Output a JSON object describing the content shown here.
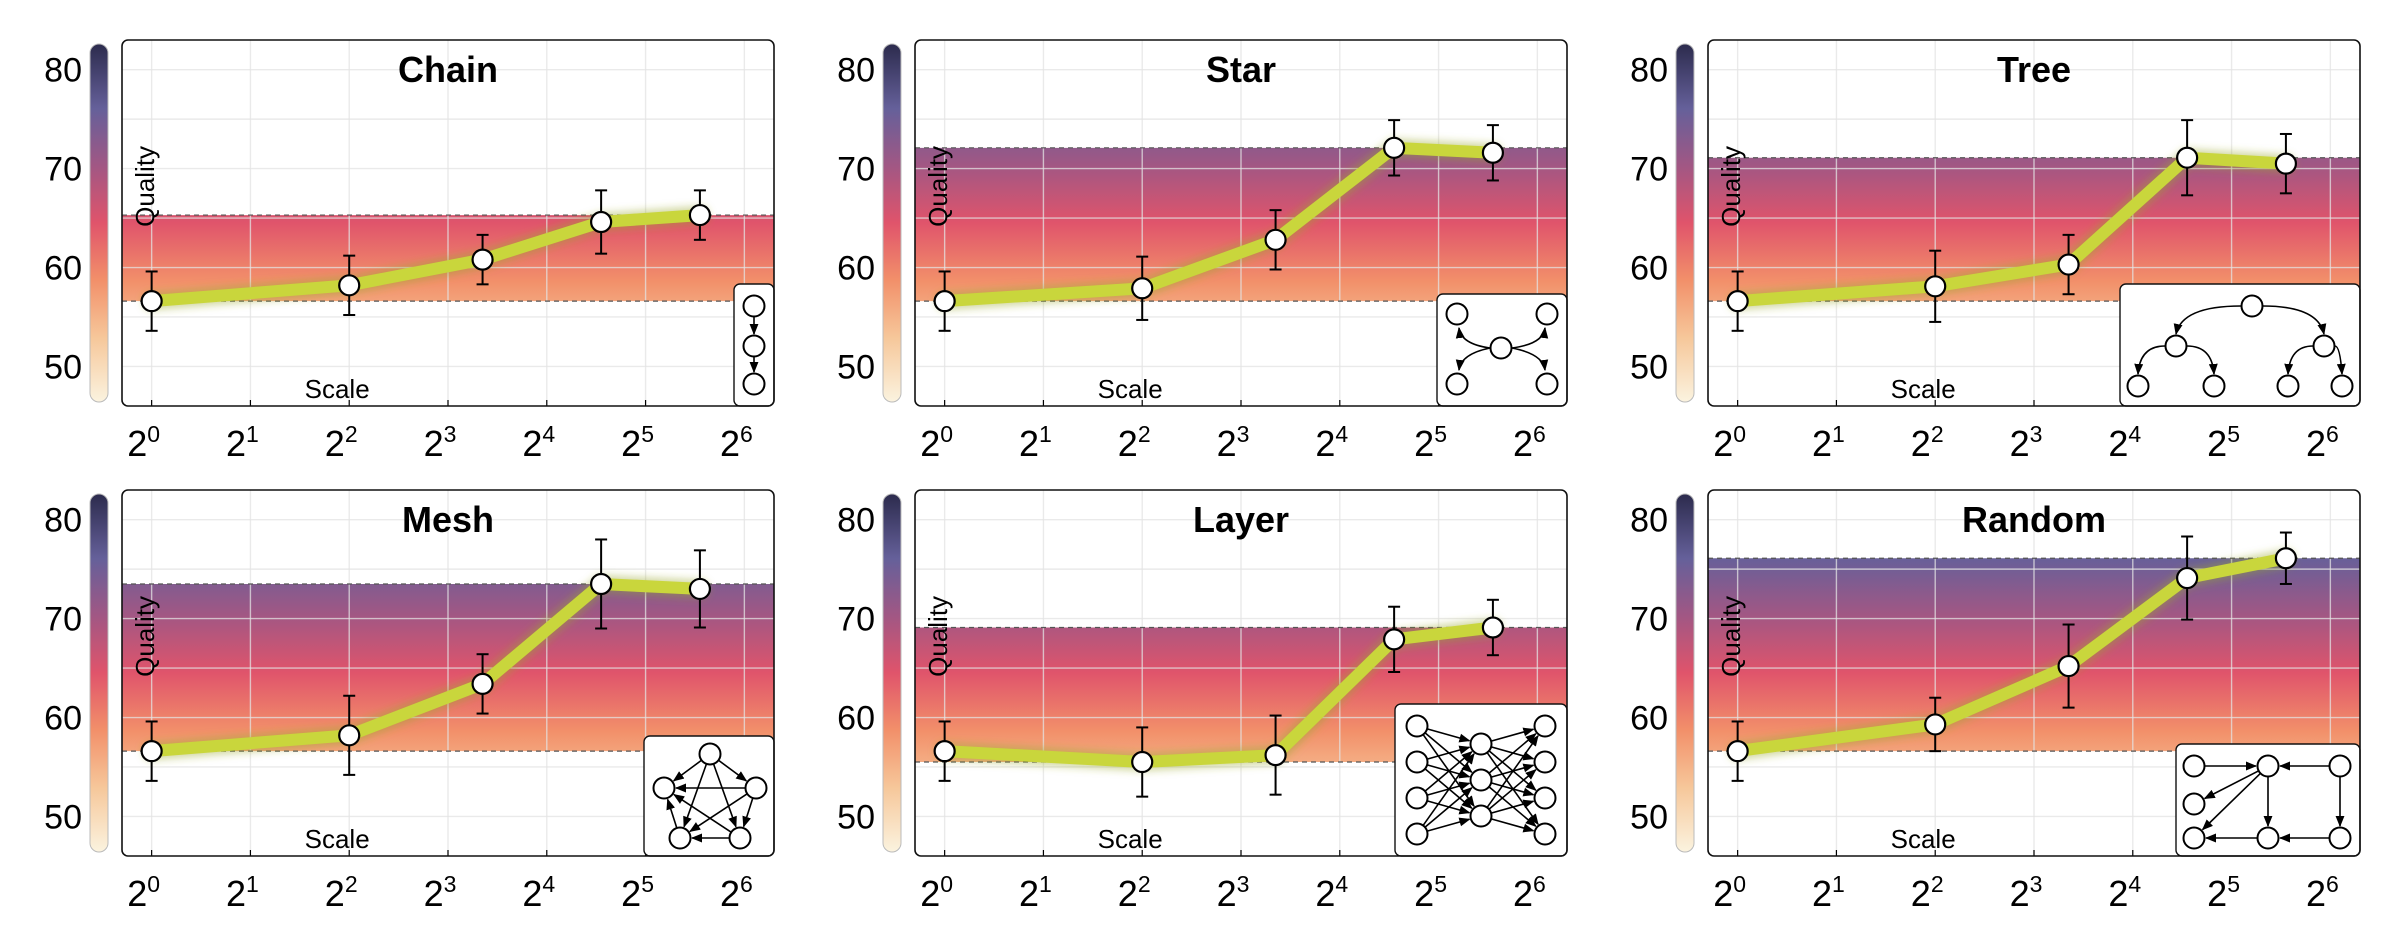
{
  "chart_data": [
    {
      "type": "line",
      "title": "Chain",
      "xlabel": "Scale",
      "ylabel": "Quality",
      "x_scale": "log2",
      "x_ticks": [
        "0",
        "1",
        "2",
        "3",
        "4",
        "5",
        "6"
      ],
      "x_tick_base": "2",
      "y_ticks": [
        50,
        60,
        70,
        80
      ],
      "ylim": [
        46,
        83
      ],
      "xlim": [
        -0.3,
        6.3
      ],
      "band": [
        56.6,
        65.3
      ],
      "x": [
        0,
        2,
        3.35,
        4.55,
        5.55
      ],
      "values": [
        56.6,
        58.2,
        60.8,
        64.6,
        65.3
      ],
      "err": [
        3.0,
        3.0,
        2.5,
        3.2,
        2.5
      ],
      "topology": "chain"
    },
    {
      "type": "line",
      "title": "Star",
      "xlabel": "Scale",
      "ylabel": "Quality",
      "x_scale": "log2",
      "x_ticks": [
        "0",
        "1",
        "2",
        "3",
        "4",
        "5",
        "6"
      ],
      "x_tick_base": "2",
      "y_ticks": [
        50,
        60,
        70,
        80
      ],
      "ylim": [
        46,
        83
      ],
      "xlim": [
        -0.3,
        6.3
      ],
      "band": [
        56.6,
        72.1
      ],
      "x": [
        0,
        2,
        3.35,
        4.55,
        5.55
      ],
      "values": [
        56.6,
        57.9,
        62.8,
        72.1,
        71.6
      ],
      "err": [
        3.0,
        3.2,
        3.0,
        2.8,
        2.8
      ],
      "topology": "star"
    },
    {
      "type": "line",
      "title": "Tree",
      "xlabel": "Scale",
      "ylabel": "Quality",
      "x_scale": "log2",
      "x_ticks": [
        "0",
        "1",
        "2",
        "3",
        "4",
        "5",
        "6"
      ],
      "x_tick_base": "2",
      "y_ticks": [
        50,
        60,
        70,
        80
      ],
      "ylim": [
        46,
        83
      ],
      "xlim": [
        -0.3,
        6.3
      ],
      "band": [
        56.6,
        71.1
      ],
      "x": [
        0,
        2,
        3.35,
        4.55,
        5.55
      ],
      "values": [
        56.6,
        58.1,
        60.3,
        71.1,
        70.5
      ],
      "err": [
        3.0,
        3.6,
        3.0,
        3.8,
        3.0
      ],
      "topology": "tree"
    },
    {
      "type": "line",
      "title": "Mesh",
      "xlabel": "Scale",
      "ylabel": "Quality",
      "x_scale": "log2",
      "x_ticks": [
        "0",
        "1",
        "2",
        "3",
        "4",
        "5",
        "6"
      ],
      "x_tick_base": "2",
      "y_ticks": [
        50,
        60,
        70,
        80
      ],
      "ylim": [
        46,
        83
      ],
      "xlim": [
        -0.3,
        6.3
      ],
      "band": [
        56.6,
        73.5
      ],
      "x": [
        0,
        2,
        3.35,
        4.55,
        5.55
      ],
      "values": [
        56.6,
        58.2,
        63.4,
        73.5,
        73.0
      ],
      "err": [
        3.0,
        4.0,
        3.0,
        4.5,
        3.9
      ],
      "topology": "mesh"
    },
    {
      "type": "line",
      "title": "Layer",
      "xlabel": "Scale",
      "ylabel": "Quality",
      "x_scale": "log2",
      "x_ticks": [
        "0",
        "1",
        "2",
        "3",
        "4",
        "5",
        "6"
      ],
      "x_tick_base": "2",
      "y_ticks": [
        50,
        60,
        70,
        80
      ],
      "ylim": [
        46,
        83
      ],
      "xlim": [
        -0.3,
        6.3
      ],
      "band": [
        55.5,
        69.1
      ],
      "x": [
        0,
        2,
        3.35,
        4.55,
        5.55
      ],
      "values": [
        56.6,
        55.5,
        56.2,
        67.9,
        69.1
      ],
      "err": [
        3.0,
        3.5,
        4.0,
        3.3,
        2.8
      ],
      "topology": "layer"
    },
    {
      "type": "line",
      "title": "Random",
      "xlabel": "Scale",
      "ylabel": "Quality",
      "x_scale": "log2",
      "x_ticks": [
        "0",
        "1",
        "2",
        "3",
        "4",
        "5",
        "6"
      ],
      "x_tick_base": "2",
      "y_ticks": [
        50,
        60,
        70,
        80
      ],
      "ylim": [
        46,
        83
      ],
      "xlim": [
        -0.3,
        6.3
      ],
      "band": [
        56.6,
        76.1
      ],
      "x": [
        0,
        2,
        3.35,
        4.55,
        5.55
      ],
      "values": [
        56.6,
        59.3,
        65.2,
        74.1,
        76.1
      ],
      "err": [
        3.0,
        2.7,
        4.2,
        4.2,
        2.6
      ],
      "topology": "random"
    }
  ],
  "colors": {
    "line": "#c9d63c",
    "marker_fill": "#ffffff",
    "marker_edge": "#000000",
    "grid": "#e3e3e3",
    "gradient": [
      "#fbf3df",
      "#f6c79a",
      "#f2906a",
      "#e0546b",
      "#a15784",
      "#65609a",
      "#2c2b4d"
    ]
  }
}
